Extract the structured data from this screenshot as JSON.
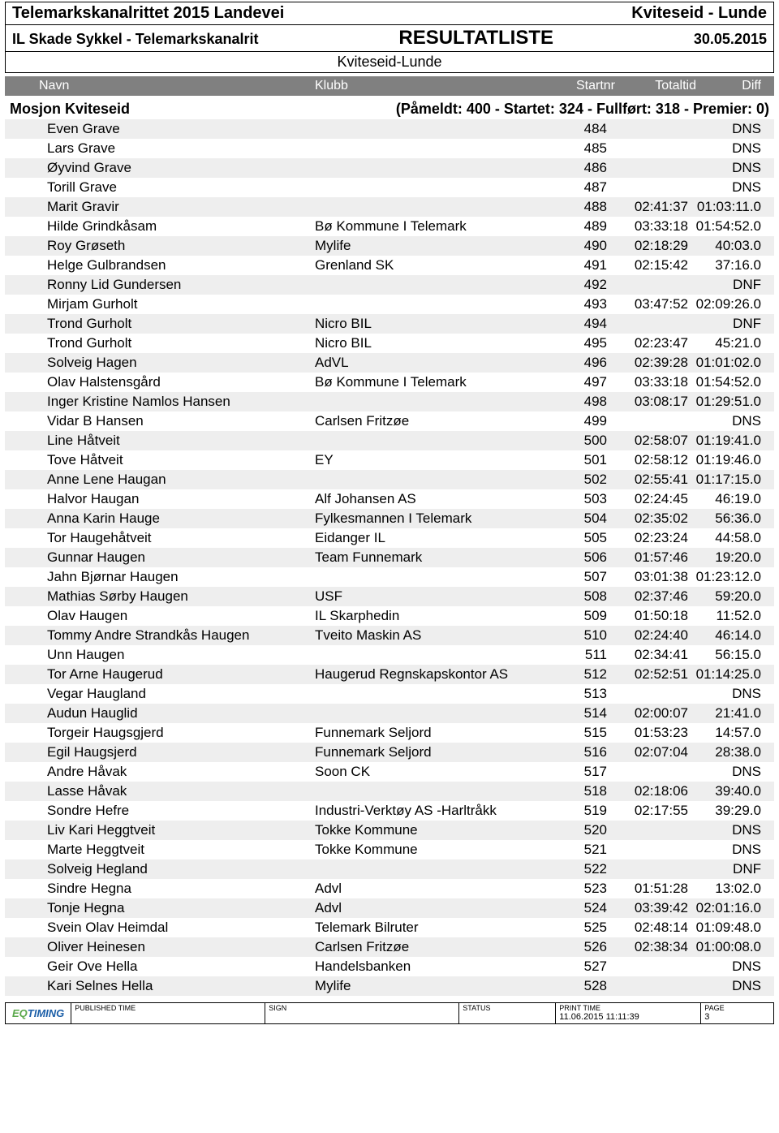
{
  "header": {
    "event_title": "Telemarkskanalrittet 2015 Landevei",
    "event_location": "Kviteseid - Lunde",
    "organizer": "IL Skade Sykkel - Telemarkskanalrit",
    "list_type": "RESULTATLISTE",
    "date": "30.05.2015",
    "route": "Kviteseid-Lunde"
  },
  "columns": {
    "name": "Navn",
    "club": "Klubb",
    "startnr": "Startnr",
    "total": "Totaltid",
    "diff": "Diff"
  },
  "section": {
    "title": "Mosjon Kviteseid",
    "stats": "(Påmeldt: 400  -  Startet: 324  -  Fullført: 318  -  Premier: 0)"
  },
  "rows": [
    {
      "name": "Even Grave",
      "club": "",
      "start": "484",
      "total": "",
      "diff": "DNS"
    },
    {
      "name": "Lars Grave",
      "club": "",
      "start": "485",
      "total": "",
      "diff": "DNS"
    },
    {
      "name": "Øyvind Grave",
      "club": "",
      "start": "486",
      "total": "",
      "diff": "DNS"
    },
    {
      "name": "Torill Grave",
      "club": "",
      "start": "487",
      "total": "",
      "diff": "DNS"
    },
    {
      "name": "Marit Gravir",
      "club": "",
      "start": "488",
      "total": "02:41:37",
      "diff": "01:03:11.0"
    },
    {
      "name": "Hilde Grindkåsam",
      "club": "Bø Kommune I Telemark",
      "start": "489",
      "total": "03:33:18",
      "diff": "01:54:52.0"
    },
    {
      "name": "Roy Grøseth",
      "club": "Mylife",
      "start": "490",
      "total": "02:18:29",
      "diff": "40:03.0"
    },
    {
      "name": "Helge Gulbrandsen",
      "club": "Grenland SK",
      "start": "491",
      "total": "02:15:42",
      "diff": "37:16.0"
    },
    {
      "name": "Ronny Lid Gundersen",
      "club": "",
      "start": "492",
      "total": "",
      "diff": "DNF"
    },
    {
      "name": "Mirjam Gurholt",
      "club": "",
      "start": "493",
      "total": "03:47:52",
      "diff": "02:09:26.0"
    },
    {
      "name": "Trond Gurholt",
      "club": "Nicro BIL",
      "start": "494",
      "total": "",
      "diff": "DNF"
    },
    {
      "name": "Trond Gurholt",
      "club": "Nicro BIL",
      "start": "495",
      "total": "02:23:47",
      "diff": "45:21.0"
    },
    {
      "name": "Solveig Hagen",
      "club": "AdVL",
      "start": "496",
      "total": "02:39:28",
      "diff": "01:01:02.0"
    },
    {
      "name": "Olav Halstensgård",
      "club": "Bø Kommune I Telemark",
      "start": "497",
      "total": "03:33:18",
      "diff": "01:54:52.0"
    },
    {
      "name": "Inger Kristine Namlos Hansen",
      "club": "",
      "start": "498",
      "total": "03:08:17",
      "diff": "01:29:51.0"
    },
    {
      "name": "Vidar B Hansen",
      "club": "Carlsen Fritzøe",
      "start": "499",
      "total": "",
      "diff": "DNS"
    },
    {
      "name": "Line Håtveit",
      "club": "",
      "start": "500",
      "total": "02:58:07",
      "diff": "01:19:41.0"
    },
    {
      "name": "Tove Håtveit",
      "club": "EY",
      "start": "501",
      "total": "02:58:12",
      "diff": "01:19:46.0"
    },
    {
      "name": "Anne Lene Haugan",
      "club": "",
      "start": "502",
      "total": "02:55:41",
      "diff": "01:17:15.0"
    },
    {
      "name": "Halvor Haugan",
      "club": "Alf Johansen AS",
      "start": "503",
      "total": "02:24:45",
      "diff": "46:19.0"
    },
    {
      "name": "Anna Karin Hauge",
      "club": "Fylkesmannen I Telemark",
      "start": "504",
      "total": "02:35:02",
      "diff": "56:36.0"
    },
    {
      "name": "Tor Haugehåtveit",
      "club": "Eidanger IL",
      "start": "505",
      "total": "02:23:24",
      "diff": "44:58.0"
    },
    {
      "name": "Gunnar Haugen",
      "club": "Team Funnemark",
      "start": "506",
      "total": "01:57:46",
      "diff": "19:20.0"
    },
    {
      "name": "Jahn Bjørnar Haugen",
      "club": "",
      "start": "507",
      "total": "03:01:38",
      "diff": "01:23:12.0"
    },
    {
      "name": "Mathias Sørby Haugen",
      "club": "USF",
      "start": "508",
      "total": "02:37:46",
      "diff": "59:20.0"
    },
    {
      "name": "Olav Haugen",
      "club": "IL Skarphedin",
      "start": "509",
      "total": "01:50:18",
      "diff": "11:52.0"
    },
    {
      "name": "Tommy Andre Strandkås Haugen",
      "club": "Tveito Maskin AS",
      "start": "510",
      "total": "02:24:40",
      "diff": "46:14.0"
    },
    {
      "name": "Unn Haugen",
      "club": "",
      "start": "511",
      "total": "02:34:41",
      "diff": "56:15.0"
    },
    {
      "name": "Tor Arne Haugerud",
      "club": "Haugerud Regnskapskontor AS",
      "start": "512",
      "total": "02:52:51",
      "diff": "01:14:25.0"
    },
    {
      "name": "Vegar Haugland",
      "club": "",
      "start": "513",
      "total": "",
      "diff": "DNS"
    },
    {
      "name": "Audun Hauglid",
      "club": "",
      "start": "514",
      "total": "02:00:07",
      "diff": "21:41.0"
    },
    {
      "name": "Torgeir Haugsgjerd",
      "club": "Funnemark Seljord",
      "start": "515",
      "total": "01:53:23",
      "diff": "14:57.0"
    },
    {
      "name": "Egil Haugsjerd",
      "club": "Funnemark Seljord",
      "start": "516",
      "total": "02:07:04",
      "diff": "28:38.0"
    },
    {
      "name": "Andre Håvak",
      "club": "Soon CK",
      "start": "517",
      "total": "",
      "diff": "DNS"
    },
    {
      "name": "Lasse Håvak",
      "club": "",
      "start": "518",
      "total": "02:18:06",
      "diff": "39:40.0"
    },
    {
      "name": "Sondre Hefre",
      "club": "Industri-Verktøy AS -Harltråkk",
      "start": "519",
      "total": "02:17:55",
      "diff": "39:29.0"
    },
    {
      "name": "Liv Kari Heggtveit",
      "club": "Tokke Kommune",
      "start": "520",
      "total": "",
      "diff": "DNS"
    },
    {
      "name": "Marte Heggtveit",
      "club": "Tokke Kommune",
      "start": "521",
      "total": "",
      "diff": "DNS"
    },
    {
      "name": "Solveig Hegland",
      "club": "",
      "start": "522",
      "total": "",
      "diff": "DNF"
    },
    {
      "name": "Sindre Hegna",
      "club": "Advl",
      "start": "523",
      "total": "01:51:28",
      "diff": "13:02.0"
    },
    {
      "name": "Tonje Hegna",
      "club": "Advl",
      "start": "524",
      "total": "03:39:42",
      "diff": "02:01:16.0"
    },
    {
      "name": "Svein Olav Heimdal",
      "club": "Telemark Bilruter",
      "start": "525",
      "total": "02:48:14",
      "diff": "01:09:48.0"
    },
    {
      "name": "Oliver Heinesen",
      "club": "Carlsen Fritzøe",
      "start": "526",
      "total": "02:38:34",
      "diff": "01:00:08.0"
    },
    {
      "name": "Geir Ove Hella",
      "club": "Handelsbanken",
      "start": "527",
      "total": "",
      "diff": "DNS"
    },
    {
      "name": "Kari Selnes Hella",
      "club": "Mylife",
      "start": "528",
      "total": "",
      "diff": "DNS"
    }
  ],
  "footer": {
    "logo1": "EQ",
    "logo2": "TIMING",
    "published_label": "PUBLISHED TIME",
    "sign_label": "SIGN",
    "status_label": "STATUS",
    "print_label": "PRINT TIME",
    "print_value": "11.06.2015 11:11:39",
    "page_label": "PAGE",
    "page_value": "3"
  }
}
